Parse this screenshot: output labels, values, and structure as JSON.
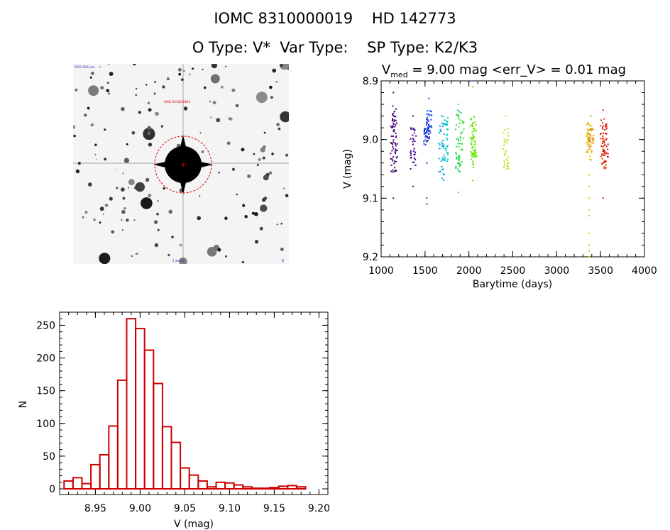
{
  "header": {
    "line1": "IOMC 8310000019    HD 142773",
    "line2": "O Type: V*  Var Type:    SP Type: K2/K3"
  },
  "stamp": {
    "label": "finding-chart image",
    "tiny_labels": [
      "POSS DSS red",
      "IOMC 8310000019",
      "N",
      "E",
      "1 arcmin"
    ]
  },
  "chart_data": [
    {
      "type": "scatter",
      "name": "light-curve",
      "title_prefix": "V",
      "title_subscript": "med",
      "title_rest": " = 9.00 mag <err_V> = 0.01 mag",
      "xlabel": "Barytime (days)",
      "ylabel": "V (mag)",
      "xlim": [
        1000,
        4000
      ],
      "ylim": [
        9.2,
        8.9
      ],
      "xticks": [
        1000,
        1500,
        2000,
        2500,
        3000,
        3500,
        4000
      ],
      "yticks": [
        8.9,
        9.0,
        9.1,
        9.2
      ],
      "ytick_labels": [
        "8.9",
        "9.0",
        "9.1",
        "9.2"
      ],
      "groups": [
        {
          "x": 1140,
          "ymin": 8.94,
          "ymax": 9.06,
          "color": "#3a005a",
          "extra": [
            9.1,
            8.92
          ]
        },
        {
          "x": 1155,
          "ymin": 8.95,
          "ymax": 9.04,
          "color": "#4b0080",
          "extra": []
        },
        {
          "x": 1365,
          "ymin": 8.98,
          "ymax": 9.05,
          "color": "#3c0090",
          "extra": [
            9.08,
            8.96
          ]
        },
        {
          "x": 1520,
          "ymin": 8.98,
          "ymax": 9.01,
          "color": "#2030d0",
          "extra": [
            9.04,
            9.1,
            9.11
          ]
        },
        {
          "x": 1545,
          "ymin": 8.95,
          "ymax": 8.99,
          "color": "#1040e0",
          "extra": [
            8.93
          ]
        },
        {
          "x": 1690,
          "ymin": 8.97,
          "ymax": 9.07,
          "color": "#00a0e8",
          "extra": [
            8.96
          ]
        },
        {
          "x": 1730,
          "ymin": 8.96,
          "ymax": 9.04,
          "color": "#00c8c0",
          "extra": []
        },
        {
          "x": 1880,
          "ymin": 8.95,
          "ymax": 9.06,
          "color": "#20d060",
          "extra": [
            9.09,
            8.94
          ]
        },
        {
          "x": 1910,
          "ymin": 8.96,
          "ymax": 9.05,
          "color": "#40e040",
          "extra": []
        },
        {
          "x": 2045,
          "ymin": 8.96,
          "ymax": 9.05,
          "color": "#60e000",
          "extra": [
            8.91,
            9.07
          ]
        },
        {
          "x": 2060,
          "ymin": 8.97,
          "ymax": 9.03,
          "color": "#70e800",
          "extra": []
        },
        {
          "x": 2420,
          "ymin": 8.98,
          "ymax": 9.05,
          "color": "#c0e020",
          "extra": [
            8.96
          ]
        },
        {
          "x": 3370,
          "ymin": 8.97,
          "ymax": 9.04,
          "color": "#e0c000",
          "extra": [
            9.06,
            9.08,
            9.1,
            9.12,
            9.13,
            9.16,
            9.18,
            9.19,
            9.2
          ]
        },
        {
          "x": 3390,
          "ymin": 8.98,
          "ymax": 9.02,
          "color": "#e09000",
          "extra": [
            8.96
          ]
        },
        {
          "x": 3530,
          "ymin": 8.96,
          "ymax": 9.05,
          "color": "#e03000",
          "extra": [
            9.1,
            8.95
          ]
        },
        {
          "x": 3555,
          "ymin": 8.97,
          "ymax": 9.04,
          "color": "#e01000",
          "extra": []
        }
      ]
    },
    {
      "type": "bar",
      "name": "histogram",
      "xlabel": "V (mag)",
      "ylabel": "N",
      "xlim": [
        8.91,
        9.21
      ],
      "ylim": [
        0,
        270
      ],
      "xticks": [
        8.95,
        9.0,
        9.05,
        9.1,
        9.15,
        9.2
      ],
      "xtick_labels": [
        "8.95",
        "9.00",
        "9.05",
        "9.10",
        "9.15",
        "9.20"
      ],
      "yticks": [
        0,
        50,
        100,
        150,
        200,
        250
      ],
      "bin_start": 8.915,
      "bin_width": 0.01,
      "values": [
        12,
        17,
        8,
        37,
        52,
        96,
        166,
        260,
        245,
        212,
        161,
        95,
        71,
        32,
        21,
        12,
        3,
        10,
        9,
        6,
        3,
        1,
        1,
        2,
        4,
        5,
        3,
        0
      ],
      "color": "#cc0000"
    }
  ]
}
